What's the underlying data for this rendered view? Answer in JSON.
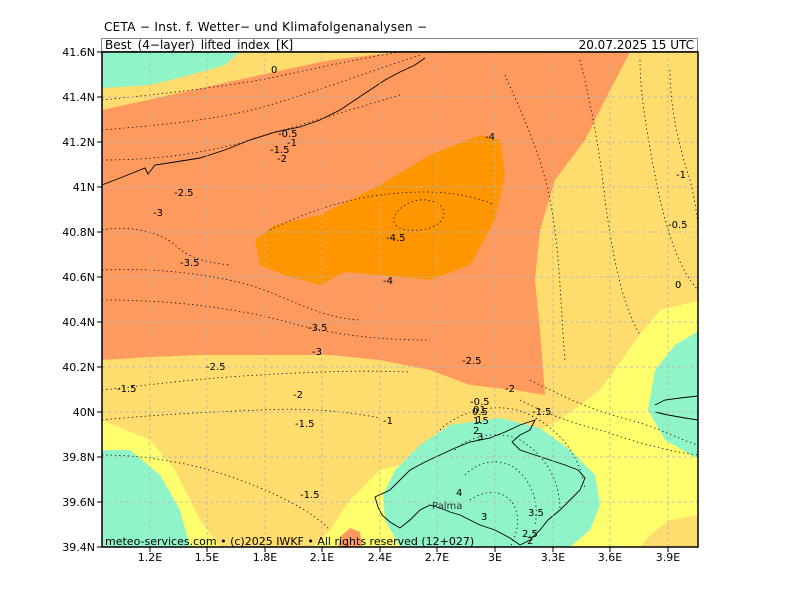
{
  "header": {
    "source_line": "CETA − Inst. f. Wetter− und Klimafolgenanalysen −",
    "field_title": "Best_(4−layer)_lifted_index_[K]",
    "valid_time": "20.07.2025  15 UTC"
  },
  "map": {
    "lon_range": [
      0.9,
      4.0
    ],
    "lat_range": [
      39.4,
      41.6
    ],
    "colors": {
      "aquamarine": "#8ff5c8",
      "yellow": "#ffff6e",
      "light_orange": "#ffdc6e",
      "salmon": "#ff9a5e",
      "orange": "#ff9600"
    },
    "lon_ticks": [
      "1.2E",
      "1.5E",
      "1.8E",
      "2.1E",
      "2.4E",
      "2.7E",
      "3E",
      "3.3E",
      "3.6E",
      "3.9E"
    ],
    "lat_ticks": [
      "41.6N",
      "41.4N",
      "41.2N",
      "41N",
      "40.8N",
      "40.6N",
      "40.4N",
      "40.2N",
      "40N",
      "39.8N",
      "39.6N",
      "39.4N"
    ],
    "contour_labels": [
      "0",
      "-0.5",
      "-1",
      "-1.5",
      "-2",
      "-2.5",
      "-3",
      "-3.5",
      "-4",
      "-4.5",
      "-4",
      "-3.5",
      "-3",
      "-2.5",
      "-2",
      "-1.5",
      "-1",
      "-0.5",
      "0",
      "-1",
      "-0.5",
      "0",
      "-2.5",
      "-2",
      "-1.5",
      "-1.5",
      "-1",
      "-0.5",
      "0",
      "0.5",
      "1",
      "1.5",
      "2",
      "2.5",
      "3",
      "3.5",
      "4",
      "3",
      "2.5",
      "2",
      "-1.5",
      "-3",
      "-3.5",
      "-2.5",
      "-1.5",
      "-4"
    ],
    "place_label": "Palma"
  },
  "footer": {
    "copyright": "meteo-services.com • (c)2025 IWKF • All rights reserved (12+027)"
  }
}
